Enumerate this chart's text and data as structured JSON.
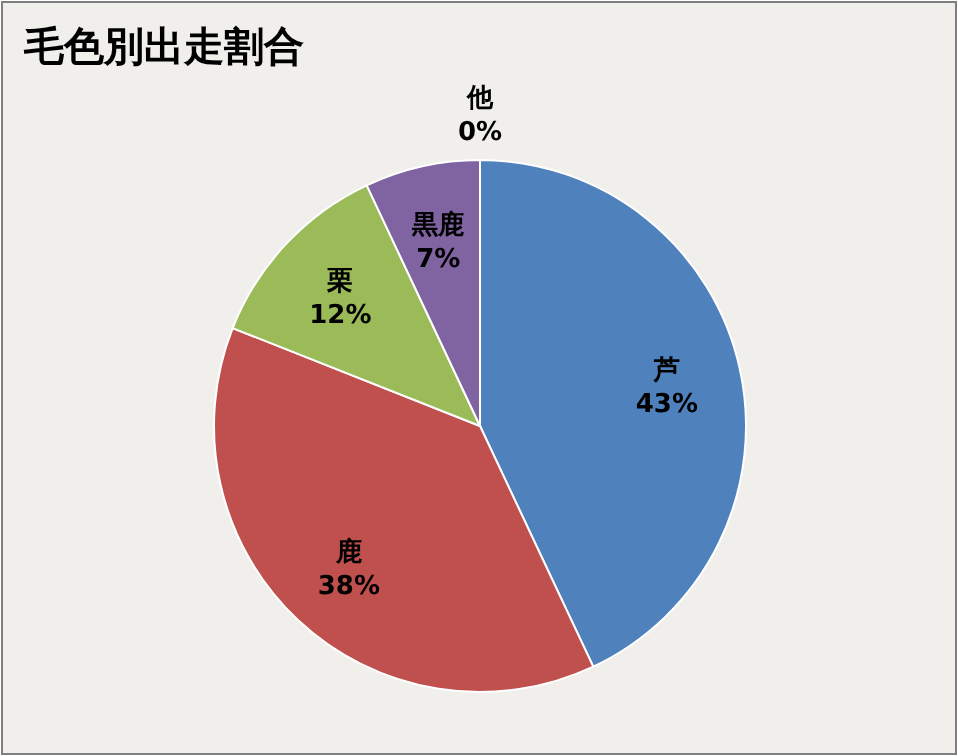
{
  "chart_data": {
    "type": "pie",
    "title": "毛色別出走割合",
    "categories": [
      "芦",
      "鹿",
      "栗",
      "黒鹿",
      "他"
    ],
    "values": [
      43,
      38,
      12,
      7,
      0
    ],
    "value_labels": [
      "43%",
      "38%",
      "12%",
      "7%",
      "0%"
    ],
    "colors": [
      "#4f81bd",
      "#c0504d",
      "#9bbb59",
      "#8064a2",
      "#4bacc6"
    ]
  }
}
